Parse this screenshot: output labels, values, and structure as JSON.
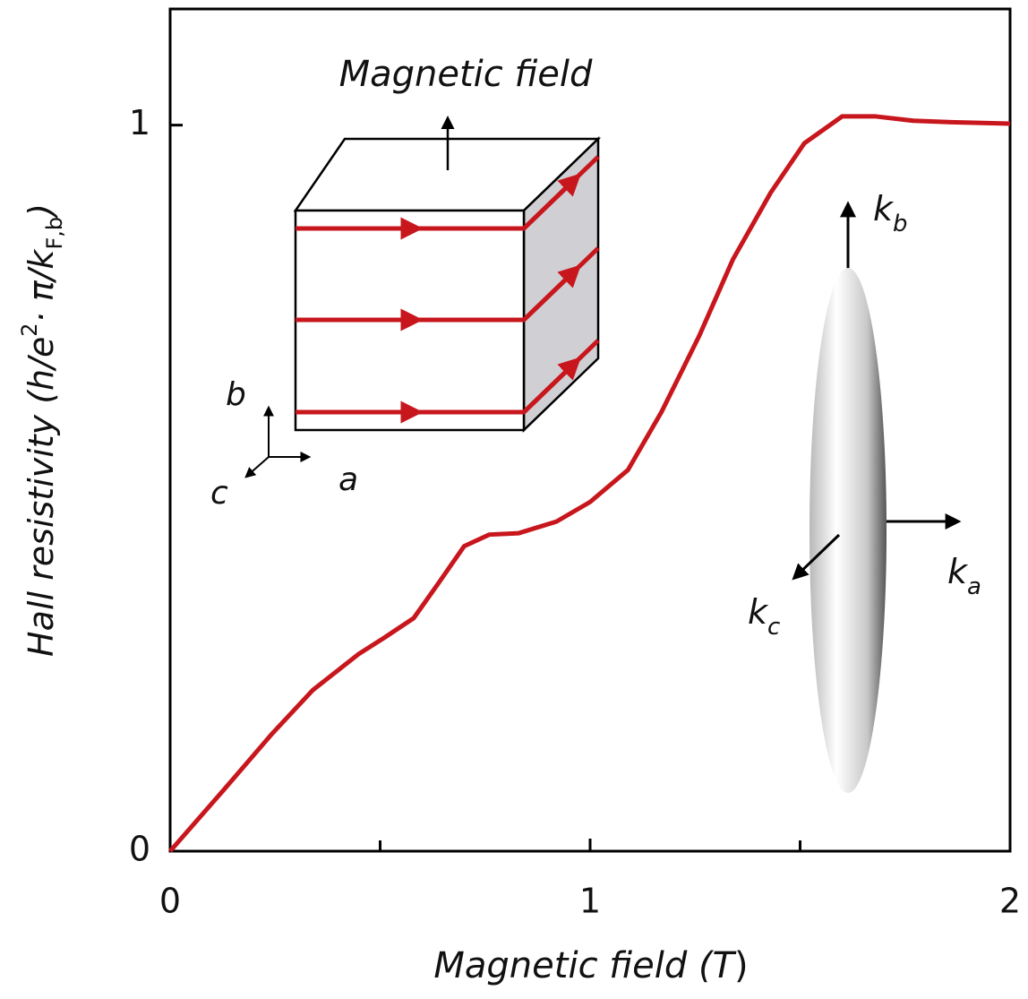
{
  "chart_data": {
    "type": "line",
    "xlabel": {
      "text": "Magnetic field (",
      "unit": "T",
      "close": ")"
    },
    "ylabel_parts": [
      "Hall resistivity (h/e",
      "2",
      "· π/k",
      "F,b",
      ")"
    ],
    "x": [
      0,
      0.13,
      0.24,
      0.34,
      0.45,
      0.51,
      0.58,
      0.64,
      0.7,
      0.76,
      0.83,
      0.92,
      1.0,
      1.09,
      1.17,
      1.26,
      1.34,
      1.43,
      1.51,
      1.6,
      1.68,
      1.77,
      1.86,
      2.0
    ],
    "series": [
      {
        "color": "#c8161d",
        "values": [
          0,
          0.086,
          0.16,
          0.222,
          0.272,
          0.294,
          0.321,
          0.37,
          0.42,
          0.436,
          0.438,
          0.454,
          0.481,
          0.525,
          0.605,
          0.71,
          0.815,
          0.907,
          0.975,
          1.012,
          1.012,
          1.006,
          1.004,
          1.002
        ]
      }
    ],
    "xlim": [
      0,
      2
    ],
    "xticks": [
      0,
      1,
      2
    ],
    "xminorticks": [
      0.5,
      1.5
    ],
    "ylim": [
      0,
      1.16
    ],
    "yticks": [
      0,
      1
    ],
    "annotations": [
      {
        "text": "Magnetic field"
      },
      {
        "text": "b"
      },
      {
        "text": "a"
      },
      {
        "text": "c"
      },
      {
        "text": "k",
        "sub": "b"
      },
      {
        "text": "k",
        "sub": "a"
      },
      {
        "text": "k",
        "sub": "c"
      }
    ]
  }
}
